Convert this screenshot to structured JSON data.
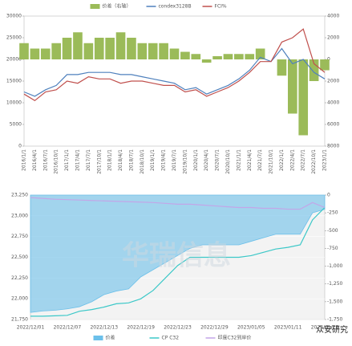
{
  "chart_data": [
    {
      "type": "combo",
      "categories": [
        "2016/1/1",
        "2016/4/1",
        "2016/7/1",
        "2016/10/1",
        "2017/1/1",
        "2017/4/1",
        "2017/7/1",
        "2017/10/1",
        "2018/1/1",
        "2018/4/1",
        "2018/7/1",
        "2018/10/1",
        "2019/1/1",
        "2019/4/1",
        "2019/7/1",
        "2019/10/1",
        "2020/1/1",
        "2020/4/1",
        "2020/7/1",
        "2020/10/1",
        "2021/1/1",
        "2021/4/1",
        "2021/7/1",
        "2021/10/1",
        "2022/1/1",
        "2022/4/1",
        "2022/7/1",
        "2022/10/1",
        "2023/1/1"
      ],
      "series": [
        {
          "name": "价差（右轴）",
          "type": "bar",
          "axis": "y2",
          "color": "#9bbb59",
          "values": [
            1500,
            1000,
            1000,
            1500,
            2000,
            2500,
            1500,
            2000,
            2000,
            2500,
            2000,
            1500,
            1500,
            1500,
            1000,
            700,
            500,
            -300,
            300,
            500,
            500,
            500,
            1000,
            0,
            -1500,
            -5000,
            -7000,
            -2000,
            -1000
          ]
        },
        {
          "name": "condex3128B",
          "type": "line",
          "color": "#4f81bd",
          "values": [
            12500,
            11500,
            13000,
            14000,
            16500,
            16500,
            17000,
            17000,
            17000,
            16500,
            16500,
            16000,
            15500,
            15000,
            14500,
            13000,
            13500,
            12000,
            13000,
            14000,
            15500,
            17500,
            20500,
            19500,
            22500,
            19000,
            20000,
            17000,
            15500
          ]
        },
        {
          "name": "FCI%",
          "type": "line",
          "color": "#c0504d",
          "values": [
            12000,
            10500,
            12500,
            13000,
            15000,
            14500,
            16000,
            15500,
            15500,
            14500,
            15000,
            15000,
            14500,
            14000,
            14000,
            12500,
            13000,
            11500,
            12500,
            13500,
            15000,
            17000,
            19500,
            19500,
            24000,
            25000,
            27000,
            19000,
            17000
          ]
        }
      ],
      "ylim": [
        0,
        30000
      ],
      "yticks": [
        0,
        5000,
        10000,
        15000,
        20000,
        25000,
        30000
      ],
      "y2lim": [
        -8000,
        4000
      ],
      "y2ticks": [
        {
          "value": -8000,
          "label": "8000"
        },
        {
          "value": -6000,
          "label": "6000"
        },
        {
          "value": -4000,
          "label": "4000"
        },
        {
          "value": -2000,
          "label": "2000"
        },
        0,
        2000,
        4000
      ]
    },
    {
      "type": "combo",
      "categories": [
        "2022/12/01",
        null,
        null,
        "2022/12/07",
        null,
        null,
        "2022/12/13",
        null,
        null,
        "2022/12/19",
        null,
        null,
        "2022/12/23",
        null,
        null,
        "2022/12/29",
        null,
        null,
        "2023/01/05",
        null,
        null,
        "2023/01/11",
        null,
        null,
        "2023/01/28"
      ],
      "series": [
        {
          "name": "价差",
          "type": "area",
          "axis": "y2",
          "color": "#6cc0ea",
          "values": [
            -1650,
            -1630,
            -1620,
            -1600,
            -1570,
            -1500,
            -1400,
            -1350,
            -1320,
            -1150,
            -1050,
            -950,
            -850,
            -750,
            -700,
            -700,
            -700,
            -700,
            -650,
            -600,
            -550,
            -550,
            -550,
            -250,
            -200
          ]
        },
        {
          "name": "CP C32",
          "type": "line",
          "color": "#3cc8c8",
          "values": [
            21790,
            21790,
            21795,
            21800,
            21850,
            21870,
            21900,
            21940,
            21950,
            22000,
            22100,
            22250,
            22400,
            22500,
            22500,
            22500,
            22500,
            22500,
            22520,
            22560,
            22600,
            22620,
            22650,
            22950,
            23100
          ]
        },
        {
          "name": "印度C32到岸价",
          "type": "line",
          "color": "#c3a6e8",
          "values": [
            23220,
            23210,
            23200,
            23195,
            23190,
            23185,
            23180,
            23175,
            23170,
            23165,
            23160,
            23150,
            23140,
            23140,
            23130,
            23120,
            23110,
            23100,
            23100,
            23090,
            23090,
            23080,
            23080,
            23160,
            23100
          ]
        }
      ],
      "ylim": [
        21750,
        23250
      ],
      "yticks": [
        {
          "value": 21750,
          "label": "21,750"
        },
        {
          "value": 22000,
          "label": "22,000"
        },
        {
          "value": 22250,
          "label": "22,250"
        },
        {
          "value": 22500,
          "label": "22,500"
        },
        {
          "value": 22750,
          "label": "22,750"
        },
        {
          "value": 23000,
          "label": "23,000"
        },
        {
          "value": 23250,
          "label": "23,250"
        }
      ],
      "y2lim": [
        -1750,
        0
      ],
      "y2ticks": [
        {
          "value": -1750,
          "label": "-1,750"
        },
        {
          "value": -1500,
          "label": "-1,500"
        },
        {
          "value": -1250,
          "label": "-1,250"
        },
        {
          "value": -1000,
          "label": "-1,000"
        },
        {
          "value": -750,
          "label": "-750"
        },
        {
          "value": -500,
          "label": "-500"
        },
        {
          "value": -250,
          "label": "-250"
        },
        0
      ],
      "annotations": [
        "华瑞信息",
        "众安研究"
      ]
    }
  ]
}
